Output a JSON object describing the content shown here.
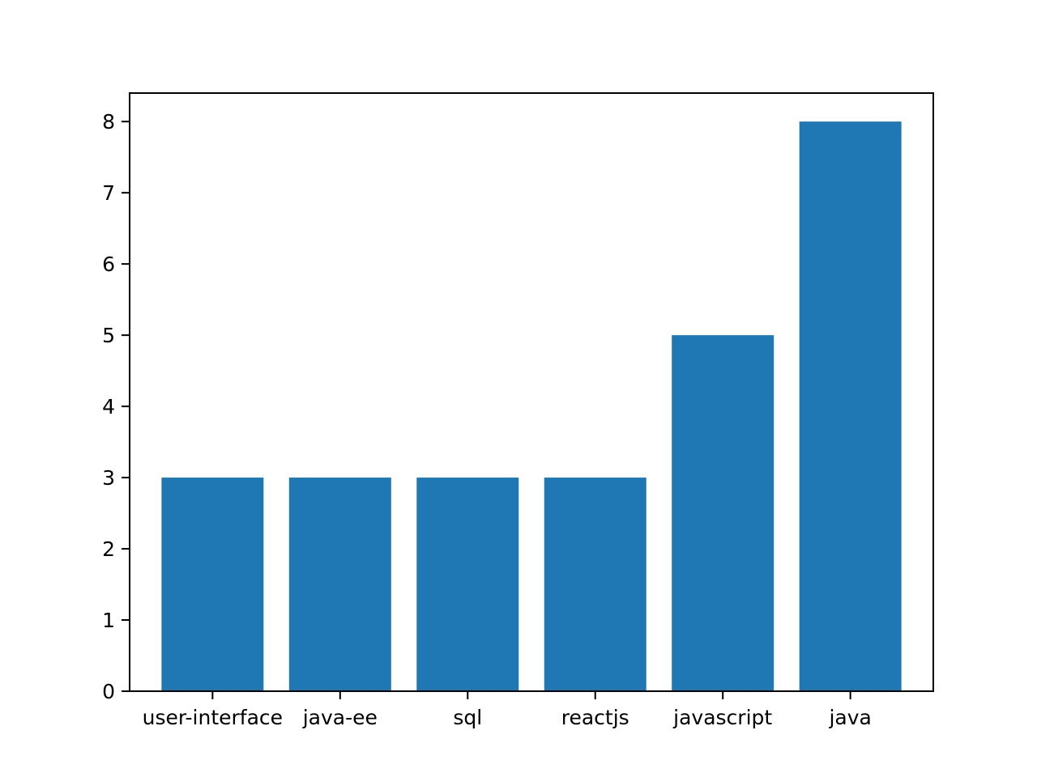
{
  "chart_data": {
    "type": "bar",
    "title": "",
    "xlabel": "",
    "ylabel": "",
    "categories": [
      "user-interface",
      "java-ee",
      "sql",
      "reactjs",
      "javascript",
      "java"
    ],
    "values": [
      3,
      3,
      3,
      3,
      5,
      8
    ],
    "ylim": [
      0,
      8.4
    ],
    "yticks": [
      0,
      1,
      2,
      3,
      4,
      5,
      6,
      7,
      8
    ],
    "grid": false,
    "legend": "none",
    "bar_color": "#1f77b4"
  }
}
